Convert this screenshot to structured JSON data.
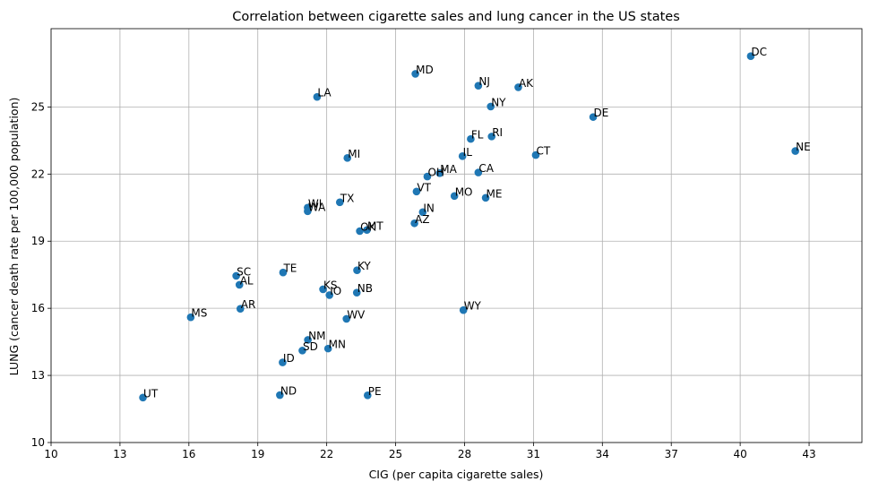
{
  "chart_data": {
    "type": "scatter",
    "title": "Correlation between cigarette sales and lung cancer in the US states",
    "xlabel": "CIG (per capita cigarette sales)",
    "ylabel": "LUNG (cancer death rate per 100,000 population)",
    "xlim": [
      10,
      45.3
    ],
    "ylim": [
      10,
      28.5
    ],
    "xticks": [
      10,
      13,
      16,
      19,
      22,
      25,
      28,
      31,
      34,
      37,
      40,
      43
    ],
    "yticks": [
      10,
      13,
      16,
      19,
      22,
      25
    ],
    "grid": true,
    "point_color": "#1f77b4",
    "points": [
      {
        "label": "DC",
        "x": 40.46,
        "y": 27.27
      },
      {
        "label": "MD",
        "x": 25.86,
        "y": 26.48
      },
      {
        "label": "NJ",
        "x": 28.6,
        "y": 25.95
      },
      {
        "label": "AK",
        "x": 30.34,
        "y": 25.88
      },
      {
        "label": "LA",
        "x": 21.58,
        "y": 25.45
      },
      {
        "label": "NY",
        "x": 29.14,
        "y": 25.02
      },
      {
        "label": "DE",
        "x": 33.6,
        "y": 24.55
      },
      {
        "label": "RI",
        "x": 29.18,
        "y": 23.68
      },
      {
        "label": "FL",
        "x": 28.27,
        "y": 23.57
      },
      {
        "label": "NE",
        "x": 42.4,
        "y": 23.03
      },
      {
        "label": "CT",
        "x": 31.1,
        "y": 22.85
      },
      {
        "label": "IL",
        "x": 27.91,
        "y": 22.8
      },
      {
        "label": "MI",
        "x": 22.9,
        "y": 22.72
      },
      {
        "label": "CA",
        "x": 28.6,
        "y": 22.07
      },
      {
        "label": "MA",
        "x": 26.92,
        "y": 22.04
      },
      {
        "label": "OH",
        "x": 26.38,
        "y": 21.89
      },
      {
        "label": "VT",
        "x": 25.91,
        "y": 21.22
      },
      {
        "label": "MO",
        "x": 27.56,
        "y": 21.02
      },
      {
        "label": "ME",
        "x": 28.92,
        "y": 20.94
      },
      {
        "label": "TX",
        "x": 22.57,
        "y": 20.74
      },
      {
        "label": "WI",
        "x": 21.17,
        "y": 20.5
      },
      {
        "label": "WA",
        "x": 21.17,
        "y": 20.34
      },
      {
        "label": "IN",
        "x": 26.18,
        "y": 20.3
      },
      {
        "label": "AZ",
        "x": 25.82,
        "y": 19.8
      },
      {
        "label": "OK",
        "x": 23.44,
        "y": 19.45
      },
      {
        "label": "MT",
        "x": 23.75,
        "y": 19.5
      },
      {
        "label": "KY",
        "x": 23.32,
        "y": 17.7
      },
      {
        "label": "TE",
        "x": 20.1,
        "y": 17.6
      },
      {
        "label": "SC",
        "x": 18.06,
        "y": 17.45
      },
      {
        "label": "AL",
        "x": 18.2,
        "y": 17.05
      },
      {
        "label": "KS",
        "x": 21.84,
        "y": 16.85
      },
      {
        "label": "IO",
        "x": 22.12,
        "y": 16.59
      },
      {
        "label": "NB",
        "x": 23.31,
        "y": 16.7
      },
      {
        "label": "AR",
        "x": 18.24,
        "y": 15.98
      },
      {
        "label": "WY",
        "x": 27.95,
        "y": 15.92
      },
      {
        "label": "MS",
        "x": 16.08,
        "y": 15.6
      },
      {
        "label": "WV",
        "x": 22.86,
        "y": 15.53
      },
      {
        "label": "NM",
        "x": 21.18,
        "y": 14.59
      },
      {
        "label": "SD",
        "x": 20.94,
        "y": 14.11
      },
      {
        "label": "MN",
        "x": 22.06,
        "y": 14.2
      },
      {
        "label": "ID",
        "x": 20.08,
        "y": 13.58
      },
      {
        "label": "ND",
        "x": 19.96,
        "y": 12.12
      },
      {
        "label": "PE",
        "x": 23.78,
        "y": 12.11
      },
      {
        "label": "UT",
        "x": 14.0,
        "y": 12.01
      }
    ]
  }
}
